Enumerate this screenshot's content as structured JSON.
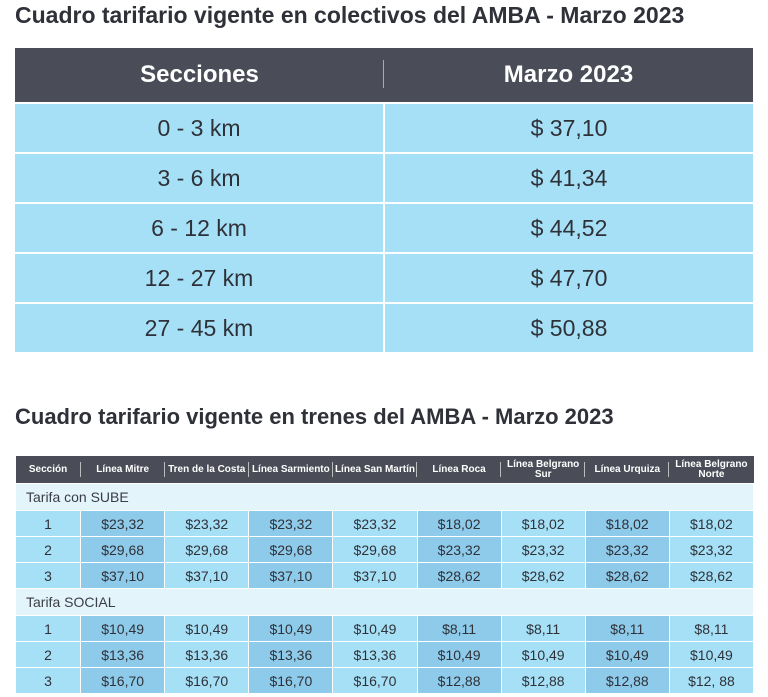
{
  "bus": {
    "title": "Cuadro tarifario vigente en colectivos del AMBA - Marzo 2023",
    "headers": [
      "Secciones",
      "Marzo 2023"
    ],
    "rows": [
      [
        "0 - 3 km",
        "$ 37,10"
      ],
      [
        "3 - 6 km",
        "$ 41,34"
      ],
      [
        "6 - 12 km",
        "$ 44,52"
      ],
      [
        "12 - 27 km",
        "$ 47,70"
      ],
      [
        "27 - 45  km",
        "$ 50,88"
      ]
    ]
  },
  "train": {
    "title": "Cuadro tarifario vigente en trenes del AMBA - Marzo 2023",
    "headers": [
      "Sección",
      "Línea Mitre",
      "Tren de la Costa",
      "Línea Sarmiento",
      "Línea San Martín",
      "Línea Roca",
      "Línea Belgrano Sur",
      "Línea Urquiza",
      "Línea Belgrano Norte"
    ],
    "groups": [
      {
        "label": "Tarifa con SUBE",
        "rows": [
          [
            "1",
            "$23,32",
            "$23,32",
            "$23,32",
            "$23,32",
            "$18,02",
            "$18,02",
            "$18,02",
            "$18,02"
          ],
          [
            "2",
            "$29,68",
            "$29,68",
            "$29,68",
            "$29,68",
            "$23,32",
            "$23,32",
            "$23,32",
            "$23,32"
          ],
          [
            "3",
            "$37,10",
            "$37,10",
            "$37,10",
            "$37,10",
            "$28,62",
            "$28,62",
            "$28,62",
            "$28,62"
          ]
        ]
      },
      {
        "label": "Tarifa SOCIAL",
        "rows": [
          [
            "1",
            "$10,49",
            "$10,49",
            "$10,49",
            "$10,49",
            "$8,11",
            "$8,11",
            "$8,11",
            "$8,11"
          ],
          [
            "2",
            "$13,36",
            "$13,36",
            "$13,36",
            "$13,36",
            "$10,49",
            "$10,49",
            "$10,49",
            "$10,49"
          ],
          [
            "3",
            "$16,70",
            "$16,70",
            "$16,70",
            "$16,70",
            "$12,88",
            "$12,88",
            "$12,88",
            "$12, 88"
          ]
        ]
      }
    ]
  },
  "colors": {
    "header": "#4a4d57",
    "cell": "#a6e0f6",
    "cell_dark": "#8ecbeb",
    "section": "#e4f4fb"
  }
}
